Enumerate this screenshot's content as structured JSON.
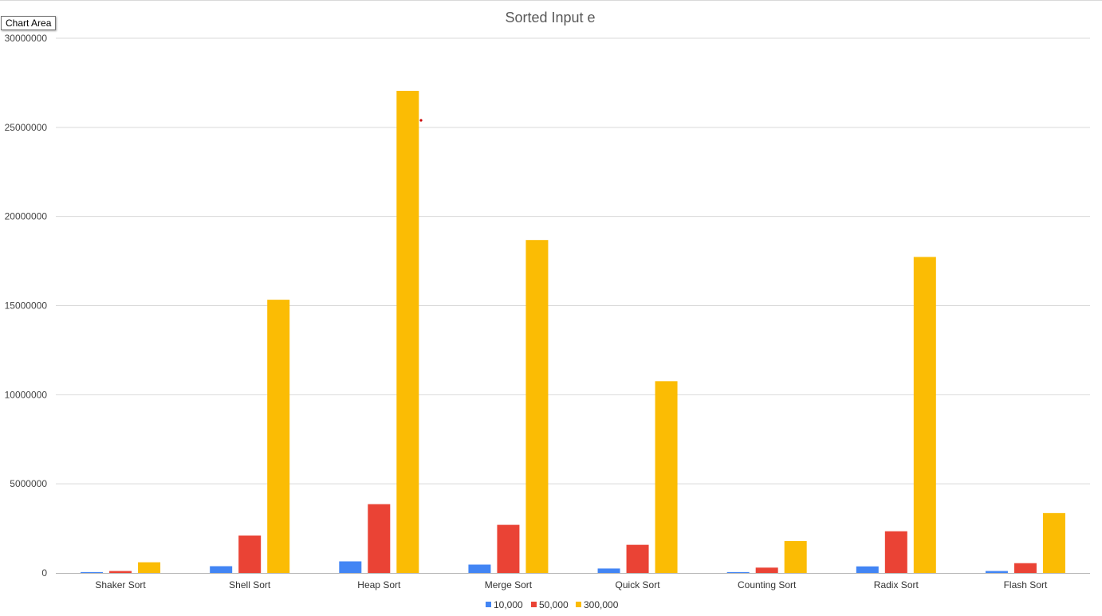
{
  "tooltip": "Chart Area",
  "chart_data": {
    "type": "bar",
    "title": "Sorted Input e",
    "xlabel": "",
    "ylabel": "",
    "ylim": [
      0,
      30000000
    ],
    "yticks": [
      "0",
      "5000000",
      "10000000",
      "15000000",
      "20000000",
      "25000000",
      "30000000"
    ],
    "grid": true,
    "legend_position": "bottom",
    "categories": [
      "Shaker Sort",
      "Shell Sort",
      "Heap Sort",
      "Merge Sort",
      "Quick Sort",
      "Counting Sort",
      "Radix Sort",
      "Flash Sort"
    ],
    "series": [
      {
        "name": "10,000",
        "color": "#4285f4",
        "values": [
          50000,
          380000,
          650000,
          470000,
          250000,
          50000,
          370000,
          110000
        ]
      },
      {
        "name": "50,000",
        "color": "#ea4335",
        "values": [
          110000,
          2100000,
          3860000,
          2700000,
          1580000,
          300000,
          2340000,
          550000
        ]
      },
      {
        "name": "300,000",
        "color": "#fbbc04",
        "values": [
          600000,
          15330000,
          27050000,
          18680000,
          10760000,
          1790000,
          17730000,
          3360000
        ]
      }
    ]
  }
}
